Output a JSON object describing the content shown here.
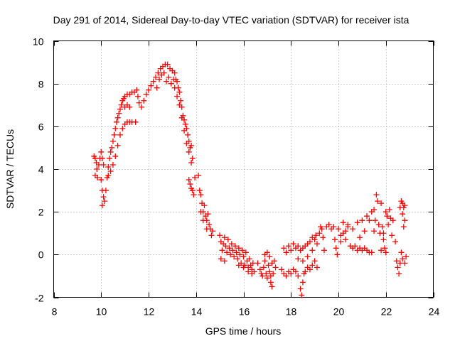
{
  "chart_data": {
    "type": "scatter",
    "title": "Day 291 of 2014, Sidereal Day-to-day VTEC variation (SDTVAR) for receiver ista",
    "xlabel": "GPS time / hours",
    "ylabel": "SDTVAR / TECUs",
    "xlim": [
      8,
      24
    ],
    "ylim": [
      -2,
      10
    ],
    "xticks": [
      8,
      10,
      12,
      14,
      16,
      18,
      20,
      22,
      24
    ],
    "yticks": [
      -2,
      0,
      2,
      4,
      6,
      8,
      10
    ],
    "grid": true,
    "marker": "+",
    "color": "#ff0000",
    "series": [
      {
        "name": "SDTVAR",
        "points": [
          [
            9.7,
            4.6
          ],
          [
            9.75,
            4.5
          ],
          [
            9.8,
            4.3
          ],
          [
            9.82,
            4.0
          ],
          [
            9.75,
            3.7
          ],
          [
            9.85,
            3.6
          ],
          [
            9.9,
            4.2
          ],
          [
            9.95,
            4.5
          ],
          [
            10.0,
            4.8
          ],
          [
            10.05,
            4.5
          ],
          [
            10.1,
            4.2
          ],
          [
            10.0,
            3.5
          ],
          [
            10.05,
            3.0
          ],
          [
            10.1,
            2.7
          ],
          [
            10.05,
            2.3
          ],
          [
            10.15,
            2.5
          ],
          [
            10.2,
            3.0
          ],
          [
            10.25,
            3.6
          ],
          [
            10.3,
            4.1
          ],
          [
            10.35,
            4.5
          ],
          [
            10.4,
            4.8
          ],
          [
            10.45,
            5.0
          ],
          [
            10.5,
            5.3
          ],
          [
            10.55,
            5.6
          ],
          [
            10.6,
            5.9
          ],
          [
            10.65,
            6.2
          ],
          [
            10.7,
            6.4
          ],
          [
            10.75,
            6.6
          ],
          [
            10.8,
            6.8
          ],
          [
            10.85,
            7.0
          ],
          [
            10.9,
            7.2
          ],
          [
            10.95,
            7.3
          ],
          [
            11.0,
            7.4
          ],
          [
            11.1,
            7.5
          ],
          [
            11.2,
            7.5
          ],
          [
            11.3,
            7.6
          ],
          [
            11.4,
            7.6
          ],
          [
            11.5,
            7.7
          ],
          [
            11.55,
            7.4
          ],
          [
            10.3,
            3.7
          ],
          [
            10.4,
            3.9
          ],
          [
            10.5,
            4.2
          ],
          [
            10.6,
            4.6
          ],
          [
            10.7,
            5.1
          ],
          [
            10.8,
            5.6
          ],
          [
            10.9,
            5.9
          ],
          [
            11.0,
            6.1
          ],
          [
            11.1,
            6.2
          ],
          [
            11.2,
            6.2
          ],
          [
            11.3,
            6.2
          ],
          [
            11.45,
            6.2
          ],
          [
            11.0,
            6.9
          ],
          [
            11.1,
            7.0
          ],
          [
            11.2,
            6.9
          ],
          [
            11.6,
            7.1
          ],
          [
            11.7,
            6.9
          ],
          [
            11.8,
            7.2
          ],
          [
            11.9,
            7.5
          ],
          [
            12.0,
            7.7
          ],
          [
            12.1,
            7.9
          ],
          [
            12.2,
            8.1
          ],
          [
            12.3,
            8.3
          ],
          [
            12.35,
            7.8
          ],
          [
            12.4,
            8.5
          ],
          [
            12.45,
            8.2
          ],
          [
            12.5,
            8.7
          ],
          [
            12.55,
            8.4
          ],
          [
            12.6,
            8.8
          ],
          [
            12.65,
            8.5
          ],
          [
            12.7,
            8.9
          ],
          [
            12.75,
            8.1
          ],
          [
            12.8,
            8.9
          ],
          [
            12.85,
            8.3
          ],
          [
            12.9,
            8.7
          ],
          [
            12.95,
            8.0
          ],
          [
            13.0,
            8.6
          ],
          [
            13.05,
            8.2
          ],
          [
            13.1,
            8.5
          ],
          [
            13.15,
            8.2
          ],
          [
            13.2,
            8.1
          ],
          [
            13.25,
            7.8
          ],
          [
            13.3,
            7.6
          ],
          [
            13.35,
            7.2
          ],
          [
            13.4,
            6.9
          ],
          [
            13.45,
            6.5
          ],
          [
            13.5,
            6.3
          ],
          [
            13.55,
            6.1
          ],
          [
            13.6,
            5.9
          ],
          [
            13.65,
            5.6
          ],
          [
            13.7,
            5.3
          ],
          [
            13.75,
            5.0
          ],
          [
            13.8,
            5.1
          ],
          [
            13.85,
            4.5
          ],
          [
            13.1,
            7.8
          ],
          [
            13.2,
            7.4
          ],
          [
            13.3,
            7.0
          ],
          [
            13.4,
            6.4
          ],
          [
            13.5,
            5.8
          ],
          [
            13.6,
            5.2
          ],
          [
            13.7,
            4.8
          ],
          [
            13.8,
            4.3
          ],
          [
            13.7,
            3.5
          ],
          [
            13.75,
            3.3
          ],
          [
            13.8,
            3.1
          ],
          [
            13.85,
            3.0
          ],
          [
            13.9,
            2.8
          ],
          [
            13.95,
            3.6
          ],
          [
            14.1,
            3.7
          ],
          [
            14.15,
            3.0
          ],
          [
            14.2,
            2.8
          ],
          [
            14.25,
            2.4
          ],
          [
            14.3,
            2.0
          ],
          [
            14.35,
            2.3
          ],
          [
            14.4,
            1.8
          ],
          [
            14.45,
            1.6
          ],
          [
            14.5,
            1.9
          ],
          [
            14.55,
            1.4
          ],
          [
            14.6,
            1.2
          ],
          [
            14.65,
            0.9
          ],
          [
            14.7,
            1.1
          ],
          [
            14.2,
            2.0
          ],
          [
            14.3,
            1.6
          ],
          [
            14.45,
            1.2
          ],
          [
            15.0,
            0.9
          ],
          [
            15.05,
            0.6
          ],
          [
            15.1,
            0.2
          ],
          [
            15.15,
            0.5
          ],
          [
            15.2,
            0.8
          ],
          [
            15.25,
            0.4
          ],
          [
            15.3,
            0.1
          ],
          [
            15.35,
            0.7
          ],
          [
            15.4,
            0.3
          ],
          [
            15.45,
            0.0
          ],
          [
            15.5,
            0.5
          ],
          [
            15.55,
            0.2
          ],
          [
            15.6,
            -0.1
          ],
          [
            15.65,
            0.4
          ],
          [
            15.7,
            0.1
          ],
          [
            15.75,
            -0.2
          ],
          [
            15.8,
            0.3
          ],
          [
            15.85,
            0.0
          ],
          [
            15.9,
            -0.4
          ],
          [
            15.95,
            0.2
          ],
          [
            16.0,
            -0.1
          ],
          [
            16.05,
            -0.5
          ],
          [
            16.1,
            0.1
          ],
          [
            16.15,
            -0.3
          ],
          [
            16.2,
            -0.6
          ],
          [
            16.25,
            -0.2
          ],
          [
            16.3,
            -0.5
          ],
          [
            16.35,
            -0.7
          ],
          [
            16.4,
            -0.4
          ],
          [
            16.45,
            -0.8
          ],
          [
            15.05,
            -0.2
          ],
          [
            15.2,
            -0.3
          ],
          [
            16.0,
            -0.6
          ],
          [
            16.2,
            -0.8
          ],
          [
            16.35,
            -0.9
          ],
          [
            15.8,
            -0.5
          ],
          [
            16.6,
            -0.4
          ],
          [
            16.7,
            -0.7
          ],
          [
            16.75,
            -0.9
          ],
          [
            16.8,
            -1.0
          ],
          [
            16.85,
            -0.6
          ],
          [
            16.9,
            -0.3
          ],
          [
            16.95,
            -0.9
          ],
          [
            17.0,
            -1.1
          ],
          [
            17.05,
            -0.5
          ],
          [
            17.1,
            -0.8
          ],
          [
            17.15,
            -1.3
          ],
          [
            17.2,
            -1.5
          ],
          [
            17.25,
            -0.9
          ],
          [
            17.3,
            -0.3
          ],
          [
            17.35,
            -0.6
          ],
          [
            17.0,
            0.1
          ],
          [
            17.1,
            -0.1
          ],
          [
            17.2,
            -0.4
          ],
          [
            16.9,
            0.0
          ],
          [
            17.15,
            -1.0
          ],
          [
            17.6,
            -0.7
          ],
          [
            17.7,
            -0.9
          ],
          [
            17.8,
            -1.0
          ],
          [
            17.9,
            -0.8
          ],
          [
            18.0,
            -0.9
          ],
          [
            18.1,
            -0.7
          ],
          [
            18.2,
            -0.8
          ],
          [
            18.3,
            -1.0
          ],
          [
            18.4,
            -1.6
          ],
          [
            18.45,
            -1.9
          ],
          [
            18.5,
            -1.3
          ],
          [
            18.55,
            -0.9
          ],
          [
            18.6,
            -0.8
          ],
          [
            18.7,
            -0.6
          ],
          [
            18.8,
            -0.7
          ],
          [
            18.9,
            -0.5
          ],
          [
            19.0,
            -0.3
          ],
          [
            19.1,
            -0.6
          ],
          [
            17.7,
            0.3
          ],
          [
            17.8,
            0.1
          ],
          [
            17.9,
            0.4
          ],
          [
            18.0,
            0.2
          ],
          [
            18.1,
            0.5
          ],
          [
            18.2,
            0.3
          ],
          [
            18.3,
            0.4
          ],
          [
            18.4,
            0.2
          ],
          [
            18.5,
            0.3
          ],
          [
            18.6,
            0.4
          ],
          [
            18.7,
            0.5
          ],
          [
            18.8,
            0.6
          ],
          [
            18.9,
            0.8
          ],
          [
            19.0,
            0.7
          ],
          [
            19.1,
            0.5
          ],
          [
            18.3,
            -0.2
          ],
          [
            18.5,
            -0.3
          ],
          [
            18.7,
            -0.1
          ],
          [
            18.9,
            0.2
          ],
          [
            19.05,
            0.9
          ],
          [
            19.2,
            1.0
          ],
          [
            19.25,
            1.3
          ],
          [
            19.3,
            1.2
          ],
          [
            19.35,
            0.8
          ],
          [
            19.4,
            0.2
          ],
          [
            19.5,
            1.3
          ],
          [
            19.6,
            1.4
          ],
          [
            19.7,
            1.2
          ],
          [
            19.8,
            1.3
          ],
          [
            19.85,
            0.7
          ],
          [
            19.9,
            0.3
          ],
          [
            19.95,
            0.0
          ],
          [
            20.0,
            1.2
          ],
          [
            20.1,
            0.9
          ],
          [
            20.2,
            1.0
          ],
          [
            20.3,
            0.7
          ],
          [
            20.4,
            1.3
          ],
          [
            20.5,
            0.4
          ],
          [
            20.6,
            0.3
          ],
          [
            20.7,
            0.4
          ],
          [
            20.8,
            0.2
          ],
          [
            20.9,
            0.3
          ],
          [
            21.0,
            0.2
          ],
          [
            21.1,
            0.3
          ],
          [
            21.2,
            0.2
          ],
          [
            21.3,
            0.1
          ],
          [
            21.4,
            0.1
          ],
          [
            20.2,
            1.5
          ],
          [
            20.4,
            1.4
          ],
          [
            20.6,
            1.2
          ],
          [
            20.8,
            1.5
          ],
          [
            21.0,
            1.6
          ],
          [
            21.2,
            1.8
          ],
          [
            21.3,
            1.6
          ],
          [
            21.4,
            2.0
          ],
          [
            21.5,
            1.1
          ],
          [
            20.1,
            0.6
          ],
          [
            20.3,
            1.1
          ],
          [
            20.9,
            0.8
          ],
          [
            21.1,
            1.1
          ],
          [
            21.5,
            2.1
          ],
          [
            21.55,
            1.6
          ],
          [
            21.6,
            2.8
          ],
          [
            21.65,
            2.5
          ],
          [
            21.7,
            1.4
          ],
          [
            21.75,
            1.0
          ],
          [
            21.8,
            2.4
          ],
          [
            21.85,
            1.3
          ],
          [
            21.9,
            0.7
          ],
          [
            21.95,
            0.3
          ],
          [
            22.0,
            2.0
          ],
          [
            22.05,
            1.8
          ],
          [
            22.1,
            1.4
          ],
          [
            22.15,
            2.1
          ],
          [
            22.2,
            1.7
          ],
          [
            22.25,
            0.9
          ],
          [
            22.3,
            1.6
          ],
          [
            22.4,
            0.6
          ],
          [
            22.45,
            -0.3
          ],
          [
            22.5,
            -0.6
          ],
          [
            22.55,
            -0.9
          ],
          [
            22.6,
            -0.4
          ],
          [
            22.65,
            0.1
          ],
          [
            22.6,
            2.2
          ],
          [
            22.65,
            2.5
          ],
          [
            22.7,
            2.4
          ],
          [
            22.75,
            2.2
          ],
          [
            22.8,
            2.3
          ],
          [
            22.7,
            1.9
          ],
          [
            22.75,
            1.3
          ],
          [
            22.8,
            1.6
          ],
          [
            22.7,
            -0.2
          ],
          [
            22.8,
            -0.4
          ],
          [
            22.85,
            -0.1
          ],
          [
            21.8,
            0.2
          ],
          [
            22.0,
            0.1
          ],
          [
            21.9,
            1.0
          ]
        ]
      }
    ]
  }
}
